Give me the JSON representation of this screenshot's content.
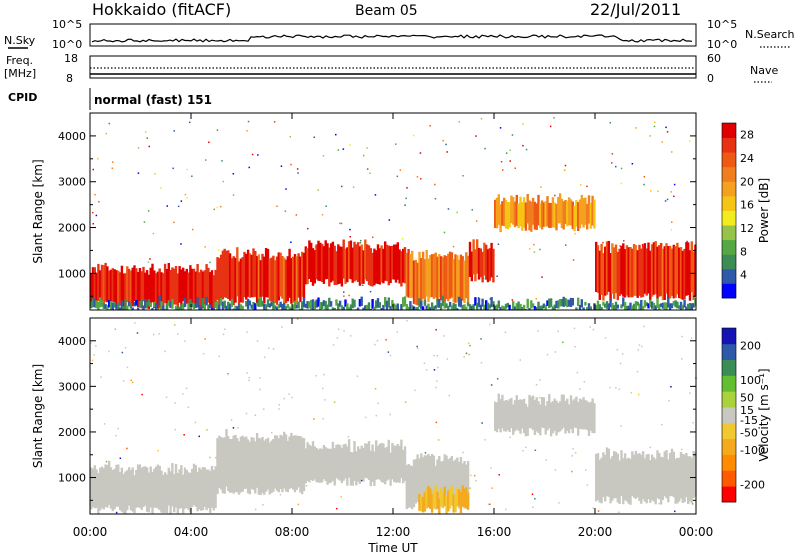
{
  "header": {
    "station": "Hokkaido (fitACF)",
    "beam": "Beam 05",
    "date": "22/Jul/2011"
  },
  "status_panels": {
    "nsky_label": "N.Sky",
    "nsky_ticks": [
      "10^5",
      "10^0"
    ],
    "nsearch_label": "N.Search",
    "nsearch_ticks": [
      "10^5",
      "10^0"
    ],
    "freq_label": "Freq.",
    "freq_unit": "[MHz]",
    "freq_ticks": [
      "18",
      "8"
    ],
    "nave_label": "Nave",
    "nave_ticks": [
      "60",
      "0"
    ],
    "cpid_label": "CPID",
    "cpid_text": "normal (fast) 151"
  },
  "colors": {
    "power_scale": [
      "#0000ff",
      "#2e58a8",
      "#3c8c55",
      "#57a844",
      "#98c34a",
      "#f2ec1e",
      "#f5c414",
      "#f5a01e",
      "#f07d1e",
      "#ee5a14",
      "#e83214",
      "#e00000"
    ],
    "velocity_scale": [
      "#ff0000",
      "#ff5a00",
      "#ff8c00",
      "#f5aa1e",
      "#f0c832",
      "#c8c8c0",
      "#aad23c",
      "#64be32",
      "#3c8c55",
      "#2e58a8",
      "#1414b4"
    ]
  },
  "chart_data": [
    {
      "type": "heatmap",
      "name": "power",
      "ylabel": "Slant Range [km]",
      "yticks": [
        1000,
        2000,
        3000,
        4000
      ],
      "ylim": [
        200,
        4500
      ],
      "xticks": [
        "00:00",
        "04:00",
        "08:00",
        "12:00",
        "16:00",
        "20:00",
        "00:00"
      ],
      "xlim_hours": [
        0,
        24
      ],
      "colorbar": {
        "label": "Power [dB]",
        "ticks": [
          4,
          8,
          12,
          16,
          20,
          24,
          28
        ],
        "range": [
          0,
          30
        ]
      },
      "regions": [
        {
          "hours": [
            0,
            5
          ],
          "range_km": [
            300,
            1100
          ],
          "value": 28
        },
        {
          "hours": [
            5,
            8.5
          ],
          "range_km": [
            400,
            1400
          ],
          "value": 26
        },
        {
          "hours": [
            8.5,
            12.5
          ],
          "range_km": [
            800,
            1600
          ],
          "value": 28
        },
        {
          "hours": [
            12.5,
            15
          ],
          "range_km": [
            400,
            1400
          ],
          "value": 22
        },
        {
          "hours": [
            15,
            16
          ],
          "range_km": [
            900,
            1600
          ],
          "value": 26
        },
        {
          "hours": [
            16,
            20
          ],
          "range_km": [
            2000,
            2600
          ],
          "value": 20
        },
        {
          "hours": [
            20,
            24
          ],
          "range_km": [
            500,
            1600
          ],
          "value": 26
        },
        {
          "hours": [
            0,
            24
          ],
          "range_km": [
            200,
            350
          ],
          "value": 6
        }
      ]
    },
    {
      "type": "heatmap",
      "name": "velocity",
      "ylabel": "Slant Range [km]",
      "yticks": [
        1000,
        2000,
        3000,
        4000
      ],
      "ylim": [
        200,
        4500
      ],
      "xticks": [
        "00:00",
        "04:00",
        "08:00",
        "12:00",
        "16:00",
        "20:00",
        "00:00"
      ],
      "xlabel": "Time UT",
      "xlim_hours": [
        0,
        24
      ],
      "colorbar": {
        "label": "Velocity [m s⁻¹]",
        "ticks": [
          200,
          100,
          50,
          15,
          -15,
          -50,
          -100,
          -200
        ],
        "range": [
          -250,
          250
        ]
      },
      "regions": [
        {
          "hours": [
            0,
            5
          ],
          "range_km": [
            300,
            1200
          ],
          "value": 0
        },
        {
          "hours": [
            5,
            8.5
          ],
          "range_km": [
            700,
            1900
          ],
          "value": 0
        },
        {
          "hours": [
            8.5,
            12.5
          ],
          "range_km": [
            900,
            1700
          ],
          "value": 0
        },
        {
          "hours": [
            12.5,
            15
          ],
          "range_km": [
            400,
            1400
          ],
          "value": 0
        },
        {
          "hours": [
            16,
            20
          ],
          "range_km": [
            2000,
            2700
          ],
          "value": 0
        },
        {
          "hours": [
            20,
            24
          ],
          "range_km": [
            500,
            1500
          ],
          "value": 0
        },
        {
          "hours": [
            13,
            15
          ],
          "range_km": [
            300,
            700
          ],
          "value": -70
        }
      ]
    }
  ],
  "xlabel": "Time UT"
}
